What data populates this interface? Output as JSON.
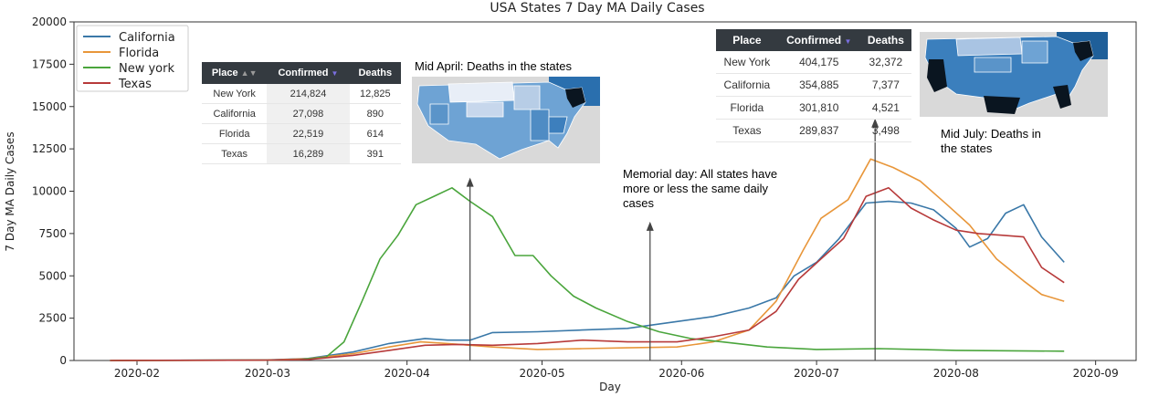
{
  "chart_data": {
    "type": "line",
    "title": "USA States 7 Day MA Daily Cases",
    "xlabel": "Day",
    "ylabel": "7 Day MA Daily Cases",
    "ylim": [
      0,
      20000
    ],
    "yticks": [
      0,
      2500,
      5000,
      7500,
      10000,
      12500,
      15000,
      17500,
      20000
    ],
    "ytick_labels": [
      "0",
      "2500",
      "5000",
      "7500",
      "10000",
      "12500",
      "15000",
      "17500",
      "20000"
    ],
    "xlim": [
      "2020-01-18",
      "2020-09-10"
    ],
    "xticks": [
      "2020-02-01",
      "2020-03-01",
      "2020-04-01",
      "2020-05-01",
      "2020-06-01",
      "2020-07-01",
      "2020-08-01",
      "2020-09-01"
    ],
    "xtick_labels": [
      "2020-02",
      "2020-03",
      "2020-04",
      "2020-05",
      "2020-06",
      "2020-07",
      "2020-08",
      "2020-09"
    ],
    "grid": false,
    "legend_position": "top-left",
    "series": [
      {
        "name": "California",
        "color": "#3a78a8",
        "x": [
          "2020-01-26",
          "2020-03-01",
          "2020-03-10",
          "2020-03-20",
          "2020-03-28",
          "2020-04-05",
          "2020-04-10",
          "2020-04-15",
          "2020-04-20",
          "2020-04-30",
          "2020-05-10",
          "2020-05-20",
          "2020-05-31",
          "2020-06-08",
          "2020-06-16",
          "2020-06-22",
          "2020-06-26",
          "2020-07-01",
          "2020-07-06",
          "2020-07-12",
          "2020-07-17",
          "2020-07-22",
          "2020-07-27",
          "2020-08-01",
          "2020-08-04",
          "2020-08-08",
          "2020-08-12",
          "2020-08-16",
          "2020-08-20",
          "2020-08-25"
        ],
        "values": [
          0,
          30,
          120,
          500,
          1000,
          1300,
          1200,
          1200,
          1650,
          1700,
          1800,
          1900,
          2300,
          2600,
          3100,
          3700,
          5000,
          5800,
          7200,
          9300,
          9400,
          9300,
          8900,
          7800,
          6700,
          7200,
          8700,
          9200,
          7300,
          5800
        ]
      },
      {
        "name": "Florida",
        "color": "#e8963a",
        "x": [
          "2020-01-26",
          "2020-03-01",
          "2020-03-10",
          "2020-03-20",
          "2020-03-28",
          "2020-04-04",
          "2020-04-10",
          "2020-04-20",
          "2020-04-30",
          "2020-05-10",
          "2020-05-20",
          "2020-05-31",
          "2020-06-08",
          "2020-06-16",
          "2020-06-22",
          "2020-06-28",
          "2020-07-02",
          "2020-07-08",
          "2020-07-13",
          "2020-07-18",
          "2020-07-24",
          "2020-07-30",
          "2020-08-04",
          "2020-08-10",
          "2020-08-16",
          "2020-08-20",
          "2020-08-25"
        ],
        "values": [
          0,
          20,
          100,
          400,
          800,
          1100,
          1000,
          800,
          650,
          700,
          750,
          800,
          1100,
          1800,
          3500,
          6500,
          8400,
          9500,
          11900,
          11400,
          10600,
          9200,
          8000,
          6000,
          4700,
          3900,
          3500
        ]
      },
      {
        "name": "New york",
        "color": "#4aa53c",
        "x": [
          "2020-01-26",
          "2020-03-01",
          "2020-03-08",
          "2020-03-14",
          "2020-03-18",
          "2020-03-22",
          "2020-03-26",
          "2020-03-30",
          "2020-04-03",
          "2020-04-07",
          "2020-04-11",
          "2020-04-15",
          "2020-04-20",
          "2020-04-25",
          "2020-04-29",
          "2020-05-03",
          "2020-05-08",
          "2020-05-13",
          "2020-05-20",
          "2020-05-27",
          "2020-06-03",
          "2020-06-10",
          "2020-06-20",
          "2020-07-01",
          "2020-07-15",
          "2020-08-01",
          "2020-08-25"
        ],
        "values": [
          0,
          20,
          50,
          200,
          1100,
          3500,
          6000,
          7400,
          9200,
          9700,
          10200,
          9400,
          8500,
          6200,
          6200,
          5000,
          3800,
          3100,
          2300,
          1700,
          1300,
          1100,
          800,
          650,
          700,
          600,
          550
        ]
      },
      {
        "name": "Texas",
        "color": "#b73a3a",
        "x": [
          "2020-01-26",
          "2020-03-01",
          "2020-03-10",
          "2020-03-20",
          "2020-03-28",
          "2020-04-05",
          "2020-04-12",
          "2020-04-20",
          "2020-04-30",
          "2020-05-10",
          "2020-05-20",
          "2020-05-31",
          "2020-06-08",
          "2020-06-16",
          "2020-06-22",
          "2020-06-27",
          "2020-07-02",
          "2020-07-07",
          "2020-07-12",
          "2020-07-17",
          "2020-07-22",
          "2020-07-27",
          "2020-08-01",
          "2020-08-06",
          "2020-08-11",
          "2020-08-16",
          "2020-08-20",
          "2020-08-25"
        ],
        "values": [
          0,
          20,
          60,
          300,
          600,
          900,
          950,
          900,
          1000,
          1200,
          1100,
          1100,
          1400,
          1800,
          2900,
          4800,
          6000,
          7200,
          9700,
          10200,
          9000,
          8300,
          7700,
          7500,
          7400,
          7300,
          5500,
          4600
        ]
      }
    ]
  },
  "table_april": {
    "headers": [
      "Place",
      "Confirmed",
      "Deaths"
    ],
    "rows": [
      [
        "New York",
        "214,824",
        "12,825"
      ],
      [
        "California",
        "27,098",
        "890"
      ],
      [
        "Florida",
        "22,519",
        "614"
      ],
      [
        "Texas",
        "16,289",
        "391"
      ]
    ]
  },
  "table_july": {
    "headers": [
      "Place",
      "Confirmed",
      "Deaths"
    ],
    "rows": [
      [
        "New York",
        "404,175",
        "32,372"
      ],
      [
        "California",
        "354,885",
        "7,377"
      ],
      [
        "Florida",
        "301,810",
        "4,521"
      ],
      [
        "Texas",
        "289,837",
        "3,498"
      ]
    ]
  },
  "annotations": {
    "april": "Mid April: Deaths in the states",
    "memorial": "Memorial day: All states have more or less the same daily cases",
    "july": "Mid July: Deaths in the states"
  },
  "arrows": {
    "april_date": "2020-04-15",
    "april_top": 10800,
    "memorial_date": "2020-05-25",
    "memorial_top": 8200,
    "july_date": "2020-07-14",
    "july_top": 14300
  }
}
